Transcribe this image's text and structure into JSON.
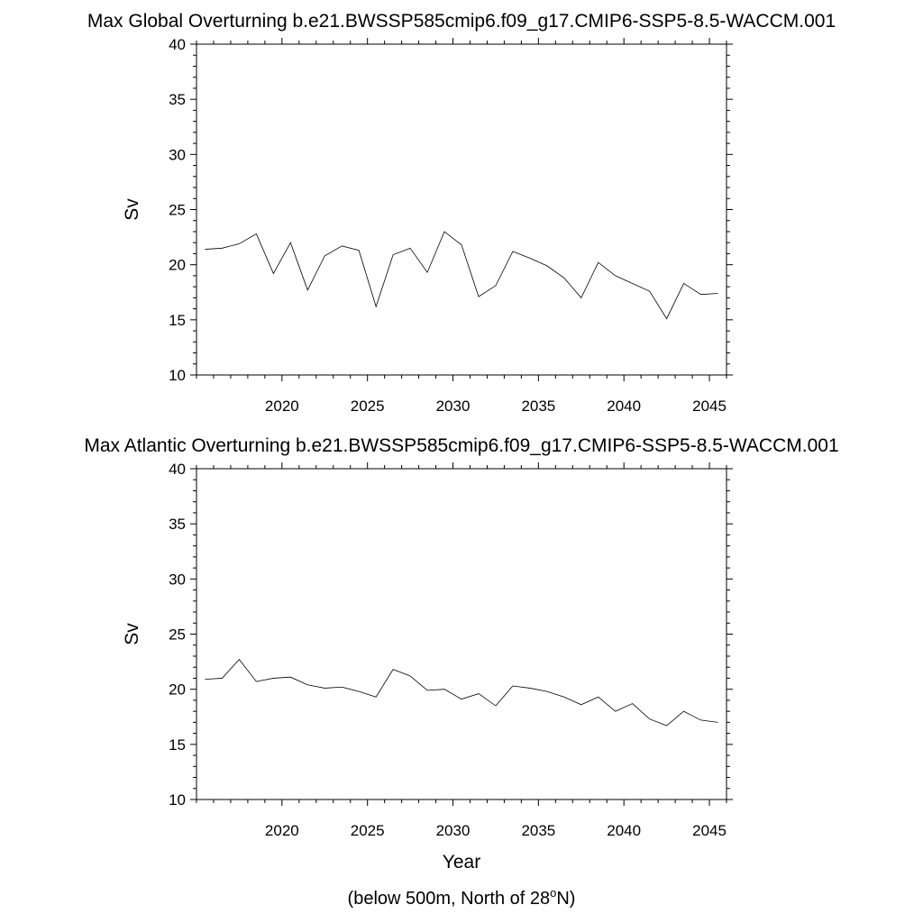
{
  "chart_data": [
    {
      "type": "line",
      "title": "Max Global Overturning b.e21.BWSSP585cmip6.f09_g17.CMIP6-SSP5-8.5-WACCM.001",
      "xlabel": "",
      "ylabel": "Sv",
      "xlim": [
        2015,
        2046
      ],
      "ylim": [
        10,
        40
      ],
      "xticks": [
        2020,
        2025,
        2030,
        2035,
        2040,
        2045
      ],
      "yticks": [
        10,
        15,
        20,
        25,
        30,
        35,
        40
      ],
      "grid": false,
      "x": [
        2015.5,
        2016.5,
        2017.5,
        2018.5,
        2019.5,
        2020.5,
        2021.5,
        2022.5,
        2023.5,
        2024.5,
        2025.5,
        2026.5,
        2027.5,
        2028.5,
        2029.5,
        2030.5,
        2031.5,
        2032.5,
        2033.5,
        2034.5,
        2035.5,
        2036.5,
        2037.5,
        2038.5,
        2039.5,
        2040.5,
        2041.5,
        2042.5,
        2043.5,
        2044.5,
        2045.5
      ],
      "series": [
        {
          "values": [
            21.4,
            21.5,
            21.9,
            22.8,
            19.2,
            22.0,
            17.7,
            20.8,
            21.7,
            21.3,
            16.2,
            20.9,
            21.5,
            19.3,
            23.0,
            21.8,
            17.1,
            18.1,
            21.2,
            20.6,
            19.9,
            18.8,
            17.0,
            20.2,
            19.0,
            18.3,
            17.6,
            15.1,
            18.3,
            17.3,
            17.4
          ]
        }
      ]
    },
    {
      "type": "line",
      "title": "Max Atlantic Overturning b.e21.BWSSP585cmip6.f09_g17.CMIP6-SSP5-8.5-WACCM.001",
      "xlabel": "Year",
      "ylabel": "Sv",
      "xlim": [
        2015,
        2046
      ],
      "ylim": [
        10,
        40
      ],
      "xticks": [
        2020,
        2025,
        2030,
        2035,
        2040,
        2045
      ],
      "yticks": [
        10,
        15,
        20,
        25,
        30,
        35,
        40
      ],
      "grid": false,
      "x": [
        2015.5,
        2016.5,
        2017.5,
        2018.5,
        2019.5,
        2020.5,
        2021.5,
        2022.5,
        2023.5,
        2024.5,
        2025.5,
        2026.5,
        2027.5,
        2028.5,
        2029.5,
        2030.5,
        2031.5,
        2032.5,
        2033.5,
        2034.5,
        2035.5,
        2036.5,
        2037.5,
        2038.5,
        2039.5,
        2040.5,
        2041.5,
        2042.5,
        2043.5,
        2044.5,
        2045.5
      ],
      "series": [
        {
          "values": [
            20.9,
            21.0,
            22.7,
            20.7,
            21.0,
            21.1,
            20.4,
            20.1,
            20.2,
            19.8,
            19.3,
            21.8,
            21.2,
            19.9,
            20.0,
            19.1,
            19.6,
            18.5,
            20.3,
            20.1,
            19.8,
            19.3,
            18.6,
            19.3,
            18.0,
            18.7,
            17.3,
            16.7,
            18.0,
            17.2,
            17.0
          ]
        }
      ]
    }
  ],
  "footnote": {
    "prefix": "(below 500m, North of 28",
    "superscript": "o",
    "suffix": "N)"
  }
}
